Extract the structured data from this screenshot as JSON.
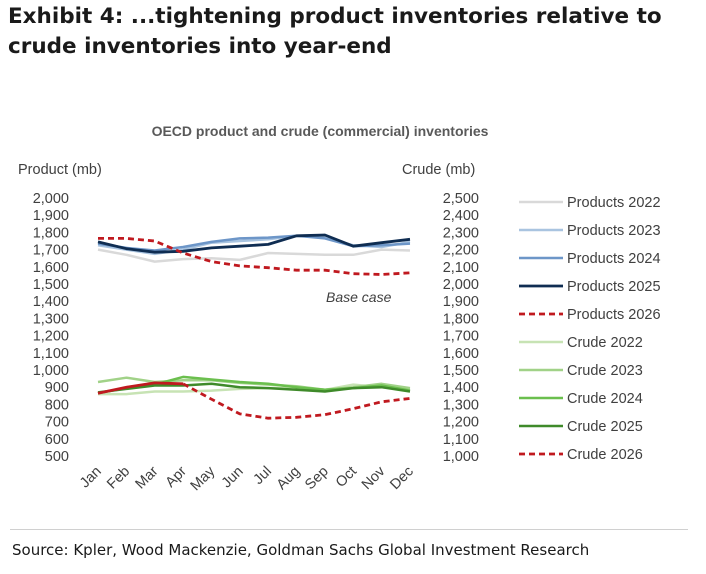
{
  "exhibit": {
    "title_line1": "Exhibit 4: ...tightening product inventories relative to",
    "title_line2": "crude inventories into year-end"
  },
  "source": "Source: Kpler, Wood Mackenzie, Goldman Sachs Global Investment Research",
  "chart_data": {
    "type": "line",
    "title": "OECD product and crude (commercial) inventories",
    "ylabel": "Product (mb)",
    "y2label": "Crude (mb)",
    "annotation": "Base case",
    "categories": [
      "Jan",
      "Feb",
      "Mar",
      "Apr",
      "May",
      "Jun",
      "Jul",
      "Aug",
      "Sep",
      "Oct",
      "Nov",
      "Dec"
    ],
    "ylim": [
      500,
      2000
    ],
    "y2lim": [
      1000,
      2500
    ],
    "yticks": [
      500,
      600,
      700,
      800,
      900,
      1000,
      1100,
      1200,
      1300,
      1400,
      1500,
      1600,
      1700,
      1800,
      1900,
      2000
    ],
    "y2ticks": [
      1000,
      1100,
      1200,
      1300,
      1400,
      1500,
      1600,
      1700,
      1800,
      1900,
      2000,
      2100,
      2200,
      2300,
      2400,
      2500
    ],
    "grid": false,
    "legend_position": "right",
    "series": [
      {
        "name": "Products 2022",
        "axis": "left",
        "color": "#d9d9d9",
        "dash": false,
        "width": 2.5,
        "values": [
          1700,
          1670,
          1630,
          1645,
          1650,
          1640,
          1680,
          1675,
          1670,
          1670,
          1700,
          1695
        ]
      },
      {
        "name": "Products 2023",
        "axis": "left",
        "color": "#a9c4e0",
        "dash": false,
        "width": 2.5,
        "values": [
          1725,
          1700,
          1675,
          1700,
          1740,
          1750,
          1760,
          1780,
          1770,
          1725,
          1715,
          1745
        ]
      },
      {
        "name": "Products 2024",
        "axis": "left",
        "color": "#6d96c8",
        "dash": false,
        "width": 2.5,
        "values": [
          1735,
          1710,
          1695,
          1715,
          1745,
          1765,
          1770,
          1780,
          1765,
          1720,
          1725,
          1735
        ]
      },
      {
        "name": "Products 2025",
        "axis": "left",
        "color": "#0f2d52",
        "dash": false,
        "width": 2.8,
        "values": [
          1745,
          1705,
          1685,
          1690,
          1710,
          1720,
          1730,
          1780,
          1785,
          1720,
          1740,
          1760
        ]
      },
      {
        "name": "Products 2026",
        "axis": "left",
        "color": "#c0191f",
        "dash": true,
        "width": 2.8,
        "values": [
          1765,
          1765,
          1750,
          1680,
          1630,
          1605,
          1595,
          1580,
          1580,
          1560,
          1555,
          1565
        ]
      },
      {
        "name": "Crude 2022",
        "axis": "right",
        "color": "#c7e3b4",
        "dash": false,
        "width": 2.5,
        "values": [
          1360,
          1360,
          1375,
          1375,
          1380,
          1390,
          1395,
          1395,
          1385,
          1415,
          1400,
          1385
        ]
      },
      {
        "name": "Crude 2023",
        "axis": "right",
        "color": "#a1d288",
        "dash": false,
        "width": 2.5,
        "values": [
          1430,
          1455,
          1430,
          1440,
          1440,
          1425,
          1415,
          1405,
          1385,
          1400,
          1420,
          1395
        ]
      },
      {
        "name": "Crude 2024",
        "axis": "right",
        "color": "#6bbf4e",
        "dash": false,
        "width": 2.5,
        "values": [
          1365,
          1395,
          1415,
          1460,
          1445,
          1430,
          1420,
          1400,
          1385,
          1395,
          1410,
          1380
        ]
      },
      {
        "name": "Crude 2025",
        "axis": "right",
        "color": "#3f8a2a",
        "dash": false,
        "width": 2.5,
        "values": [
          1370,
          1390,
          1410,
          1410,
          1420,
          1400,
          1395,
          1385,
          1375,
          1395,
          1400,
          1375
        ]
      },
      {
        "name": "Crude 2026",
        "axis": "right",
        "color": "#c0191f",
        "dash": true,
        "width": 2.8,
        "values": [
          1365,
          1400,
          1425,
          1420,
          1330,
          1245,
          1220,
          1225,
          1240,
          1275,
          1315,
          1335
        ]
      }
    ],
    "crude_2026_solid_months": [
      "Jan",
      "Feb",
      "Mar",
      "Apr"
    ]
  },
  "colors": {
    "axis_text": "#404040",
    "title_text": "#595959"
  }
}
